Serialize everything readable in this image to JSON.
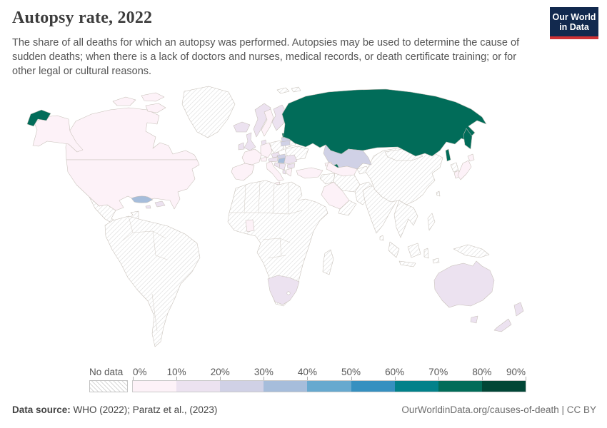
{
  "header": {
    "title": "Autopsy rate, 2022",
    "subtitle": "The share of all deaths for which an autopsy was performed. Autopsies may be used to determine the cause of sudden deaths; when there is a lack of doctors and nurses, medical records, or death certificate training; or for other legal or cultural reasons.",
    "logo_line1": "Our World",
    "logo_line2": "in Data",
    "logo_bg": "#12294e",
    "logo_accent": "#cf3235"
  },
  "footer": {
    "source_label": "Data source:",
    "source_text": " WHO (2022); Paratz et al., (2023)",
    "right_text": "OurWorldinData.org/causes-of-death | CC BY"
  },
  "chart_data": {
    "type": "choropleth_map",
    "title": "Autopsy rate, 2022",
    "year": "2022",
    "metric": "Share of all deaths for which an autopsy was performed (%)",
    "projection": "world",
    "legend": {
      "no_data_label": "No data",
      "no_data_pattern": "diagonal-hatch",
      "tick_labels": [
        "0%",
        "10%",
        "20%",
        "30%",
        "40%",
        "50%",
        "60%",
        "70%",
        "80%",
        "90%"
      ],
      "bin_ranges": [
        "0-10%",
        "10-20%",
        "20-30%",
        "30-40%",
        "40-50%",
        "50-60%",
        "60-70%",
        "70-80%",
        "80-90%"
      ],
      "bin_colors": [
        "#fdf2f8",
        "#ece2f0",
        "#d0d1e6",
        "#a6bddb",
        "#67a9cf",
        "#3690c0",
        "#02818a",
        "#016c59",
        "#014636"
      ]
    },
    "country_bins": {
      "russia": 7,
      "estonia": 7,
      "azerbaijan": 7,
      "cuba": 3,
      "hungary": 3,
      "kazakhstan": 2,
      "latvia": 2,
      "lithuania": 2,
      "slovakia": 2,
      "norway": 1,
      "finland": 1,
      "iceland": 1,
      "united-kingdom": 1,
      "ireland": 1,
      "czechia": 1,
      "austria": 1,
      "romania": 1,
      "bulgaria": 1,
      "serbia": 1,
      "croatia": 1,
      "albania": 1,
      "denmark": 1,
      "south-africa": 1,
      "australia": 1,
      "new-zealand": 1,
      "dominican-republic": 1,
      "jamaica": 1,
      "usa": 0,
      "canada": 0,
      "sweden": 0,
      "germany": 0,
      "france": 0,
      "spain": 0,
      "italy": 0,
      "switzerland": 0,
      "greece": 0,
      "turkey": 0,
      "georgia": 0,
      "saudi-arabia": 0,
      "uzbekistan": 0,
      "japan": 0,
      "south-korea": 0,
      "ghana": 0
    },
    "countries": [
      {
        "name": "Russia",
        "value_range": "70-80%"
      },
      {
        "name": "Estonia",
        "value_range": "70-80%"
      },
      {
        "name": "Azerbaijan",
        "value_range": "70-80%"
      },
      {
        "name": "Cuba",
        "value_range": "30-40%"
      },
      {
        "name": "Hungary",
        "value_range": "30-40%"
      },
      {
        "name": "Kazakhstan",
        "value_range": "20-30%"
      },
      {
        "name": "Latvia",
        "value_range": "20-30%"
      },
      {
        "name": "Lithuania",
        "value_range": "20-30%"
      },
      {
        "name": "Slovakia",
        "value_range": "20-30%"
      },
      {
        "name": "Norway",
        "value_range": "10-20%"
      },
      {
        "name": "Finland",
        "value_range": "10-20%"
      },
      {
        "name": "Iceland",
        "value_range": "10-20%"
      },
      {
        "name": "United Kingdom",
        "value_range": "10-20%"
      },
      {
        "name": "Ireland",
        "value_range": "10-20%"
      },
      {
        "name": "Czechia",
        "value_range": "10-20%"
      },
      {
        "name": "Austria",
        "value_range": "10-20%"
      },
      {
        "name": "Romania",
        "value_range": "10-20%"
      },
      {
        "name": "South Africa",
        "value_range": "10-20%"
      },
      {
        "name": "Australia",
        "value_range": "10-20%"
      },
      {
        "name": "New Zealand",
        "value_range": "10-20%"
      },
      {
        "name": "United States",
        "value_range": "0-10%"
      },
      {
        "name": "Canada",
        "value_range": "0-10%"
      },
      {
        "name": "Sweden",
        "value_range": "0-10%"
      },
      {
        "name": "Germany",
        "value_range": "0-10%"
      },
      {
        "name": "France",
        "value_range": "0-10%"
      },
      {
        "name": "Spain",
        "value_range": "0-10%"
      },
      {
        "name": "Italy",
        "value_range": "0-10%"
      },
      {
        "name": "Turkey",
        "value_range": "0-10%"
      },
      {
        "name": "Saudi Arabia",
        "value_range": "0-10%"
      },
      {
        "name": "Japan",
        "value_range": "0-10%"
      },
      {
        "name": "South Korea",
        "value_range": "0-10%"
      },
      {
        "name": "Ghana",
        "value_range": "0-10%"
      }
    ],
    "no_data_regions": [
      "Greenland",
      "Mexico",
      "Central America",
      "South America",
      "most of Africa",
      "Madagascar",
      "Poland",
      "Ukraine",
      "Belarus",
      "Iran",
      "Iraq",
      "Syria",
      "Yemen",
      "Oman",
      "Afghanistan",
      "Pakistan",
      "India",
      "Sri Lanka",
      "China",
      "Mongolia",
      "North Korea",
      "Southeast Asia",
      "Indonesia",
      "Philippines",
      "Papua New Guinea",
      "Taiwan"
    ]
  }
}
